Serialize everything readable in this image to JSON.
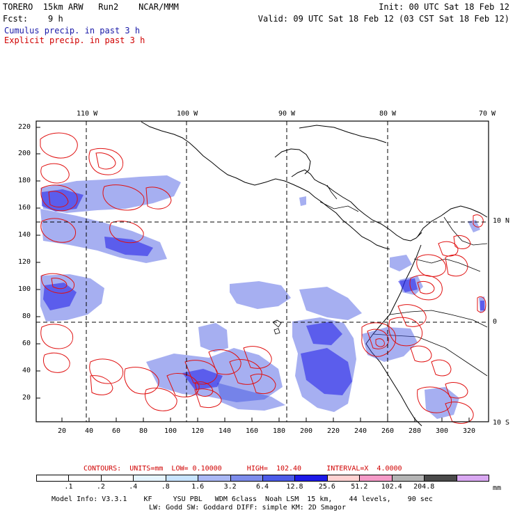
{
  "header": {
    "line1_left": "TORERO  15km ARW   Run2    NCAR/MMM",
    "line1_right": "Init: 00 UTC Sat 18 Feb 12",
    "line2_left": "Fcst:    9 h",
    "line2_right": "Valid: 09 UTC Sat 18 Feb 12 (03 CST Sat 18 Feb 12)",
    "field1": "Cumulus precip. in past 3 h",
    "field2": "Explicit precip. in past 3 h"
  },
  "map": {
    "top_labels": [
      "110 W",
      "100 W",
      "90 W",
      "80 W",
      "70 W"
    ],
    "right_labels": [
      "10 N",
      "0",
      "10 S"
    ],
    "y_ticks": [
      "220",
      "200",
      "180",
      "160",
      "140",
      "120",
      "100",
      "80",
      "60",
      "40",
      "20"
    ],
    "x_ticks": [
      "20",
      "40",
      "60",
      "80",
      "100",
      "120",
      "140",
      "160",
      "180",
      "200",
      "220",
      "240",
      "260",
      "280",
      "300",
      "320"
    ],
    "colors": {
      "coast": "#000000",
      "grid": "#000000",
      "cumulus": "#3a4ee0",
      "explicit": "#e01010"
    }
  },
  "contours": {
    "line": "CONTOURS:  UNITS=mm  LOW= 0.10000      HIGH=  102.40      INTERVAL=X  4.0000"
  },
  "colorbar": {
    "labels": [
      ".1",
      ".2",
      ".4",
      ".8",
      "1.6",
      "3.2",
      "6.4",
      "12.8",
      "25.6",
      "51.2",
      "102.4",
      "204.8"
    ],
    "unit": "mm",
    "colors": [
      "#ffffff",
      "#ffffff",
      "#ffffff",
      "#e6f5ff",
      "#c8e4ff",
      "#aab8f5",
      "#7d8ceb",
      "#4c5be8",
      "#1d1ae8",
      "#ffd2d2",
      "#f59bc8",
      "#b4b4b4",
      "#4a4a4a",
      "#d9a8f2"
    ]
  },
  "footer": {
    "line1": "Model Info: V3.3.1    KF     YSU PBL   WDM 6class  Noah LSM  15 km,    44 levels,    90 sec",
    "line2": "LW: Godd SW: Goddard DIFF: simple KM: 2D Smagor"
  }
}
